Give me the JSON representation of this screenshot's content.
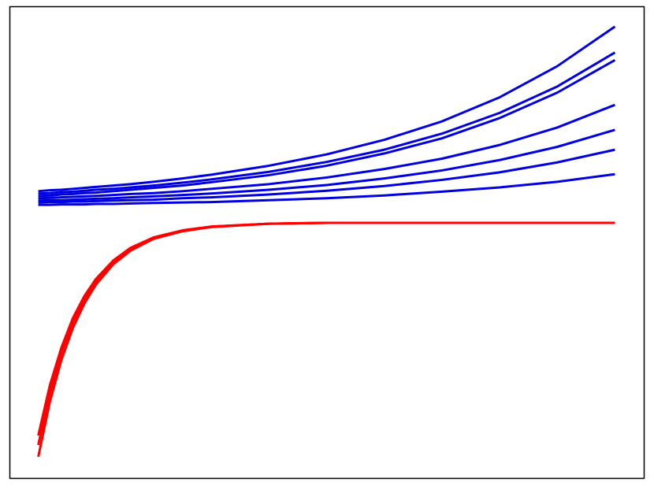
{
  "chart_data": {
    "type": "line",
    "x": [
      0,
      0.02,
      0.04,
      0.06,
      0.08,
      0.1,
      0.13,
      0.16,
      0.2,
      0.25,
      0.3,
      0.4,
      0.5,
      0.6,
      0.7,
      0.8,
      0.9,
      1.0
    ],
    "xlim": [
      -0.05,
      1.05
    ],
    "ylim": [
      0,
      100
    ],
    "grid": false,
    "series": [
      {
        "color": "#0000e0",
        "values": [
          60.8,
          61.0,
          61.1,
          61.3,
          61.5,
          61.7,
          62.0,
          62.3,
          62.8,
          63.5,
          64.3,
          66.2,
          68.6,
          71.7,
          75.6,
          80.7,
          87.3,
          95.7
        ]
      },
      {
        "color": "#0000e0",
        "values": [
          60.3,
          60.4,
          60.6,
          60.7,
          60.9,
          61.1,
          61.3,
          61.6,
          62.0,
          62.6,
          63.3,
          64.9,
          67.0,
          69.6,
          73.0,
          77.4,
          83.0,
          90.2
        ]
      },
      {
        "color": "#0000e0",
        "values": [
          59.8,
          59.9,
          60.1,
          60.2,
          60.4,
          60.5,
          60.8,
          61.1,
          61.5,
          62.0,
          62.7,
          64.2,
          66.2,
          68.8,
          72.0,
          76.3,
          81.7,
          88.6
        ]
      },
      {
        "color": "#0000e0",
        "values": [
          59.3,
          59.4,
          59.5,
          59.6,
          59.7,
          59.8,
          60.0,
          60.2,
          60.4,
          60.8,
          61.3,
          62.3,
          63.7,
          65.5,
          67.7,
          70.6,
          74.3,
          79.1
        ]
      },
      {
        "color": "#0000e0",
        "values": [
          58.8,
          58.9,
          58.9,
          59.0,
          59.1,
          59.2,
          59.3,
          59.5,
          59.7,
          60.0,
          60.3,
          61.1,
          62.1,
          63.5,
          65.2,
          67.4,
          70.2,
          73.8
        ]
      },
      {
        "color": "#0000e0",
        "values": [
          58.4,
          58.5,
          58.5,
          58.6,
          58.6,
          58.7,
          58.8,
          58.9,
          59.0,
          59.3,
          59.5,
          60.1,
          60.9,
          61.9,
          63.2,
          64.8,
          66.9,
          69.6
        ]
      },
      {
        "color": "#0000e0",
        "values": [
          57.9,
          57.9,
          58.0,
          58.0,
          58.0,
          58.1,
          58.1,
          58.2,
          58.3,
          58.4,
          58.5,
          58.9,
          59.3,
          59.9,
          60.7,
          61.6,
          62.8,
          64.4
        ]
      },
      {
        "color": "#ff0000",
        "values": [
          4.5,
          16.1,
          25.0,
          31.8,
          37.0,
          41.0,
          45.3,
          48.2,
          50.7,
          52.3,
          53.2,
          53.9,
          54.1,
          54.1,
          54.1,
          54.1,
          54.1,
          54.1
        ]
      },
      {
        "color": "#ff0000",
        "values": [
          9.0,
          19.6,
          27.6,
          33.9,
          38.6,
          42.2,
          46.1,
          48.8,
          51.0,
          52.5,
          53.3,
          53.9,
          54.1,
          54.1,
          54.1,
          54.1,
          54.1,
          54.1
        ]
      },
      {
        "color": "#ff0000",
        "values": [
          7.0,
          18.0,
          26.5,
          33.0,
          37.9,
          41.7,
          45.8,
          48.5,
          50.9,
          52.4,
          53.3,
          53.9,
          54.1,
          54.1,
          54.1,
          54.1,
          54.1,
          54.1
        ]
      }
    ]
  }
}
